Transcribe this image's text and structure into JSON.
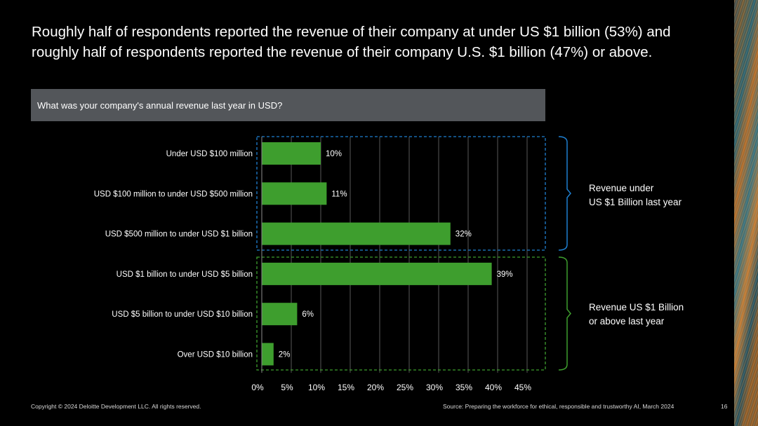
{
  "slide": {
    "title": "Roughly half of respondents reported the revenue of their company at under US $1 billion (53%) and roughly half of respondents reported the revenue of their company U.S. $1 billion (47%) or above.",
    "question": "What was your company's annual revenue last year in USD?",
    "group_under_label_line1": "Revenue under",
    "group_under_label_line2": "US $1 Billion last year",
    "group_over_label_line1": "Revenue US $1 Billion",
    "group_over_label_line2": "or above last year",
    "copyright": "Copyright © 2024 Deloitte Development LLC. All rights reserved.",
    "source": "Source: Preparing the workforce for ethical, responsible and trustworthy AI, March 2024",
    "page_number": "16"
  },
  "colors": {
    "bar": "#3e9e2e",
    "group_under_border": "#1e7fd0",
    "group_over_border": "#3e9e2e",
    "grid": "#595959",
    "question_bg": "#53565a"
  },
  "chart_data": {
    "type": "bar",
    "orientation": "horizontal",
    "title": "What was your company's annual revenue last year in USD?",
    "categories": [
      "Under USD $100 million",
      "USD $100 million to under USD $500 million",
      "USD $500 million to under USD $1 billion",
      "USD $1 billion to under USD $5 billion",
      "USD $5 billion to under USD $10 billion",
      "Over USD $10 billion"
    ],
    "values": [
      10,
      11,
      32,
      39,
      6,
      2
    ],
    "value_labels": [
      "10%",
      "11%",
      "32%",
      "39%",
      "6%",
      "2%"
    ],
    "xlim": [
      0,
      45
    ],
    "xticks": [
      "0%",
      "5%",
      "10%",
      "15%",
      "20%",
      "25%",
      "30%",
      "35%",
      "40%",
      "45%"
    ],
    "grid": true,
    "groups": [
      {
        "name": "Revenue under US $1 Billion last year",
        "categories": [
          0,
          1,
          2
        ]
      },
      {
        "name": "Revenue US $1 Billion or above last year",
        "categories": [
          3,
          4,
          5
        ]
      }
    ]
  }
}
